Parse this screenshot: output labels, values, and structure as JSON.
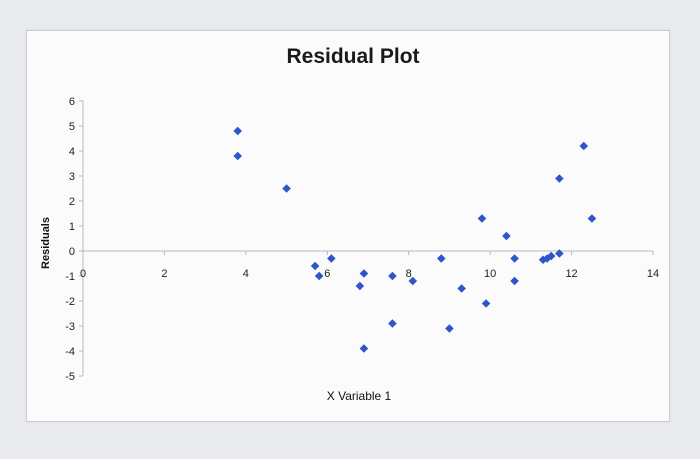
{
  "chart_data": {
    "type": "scatter",
    "title": "Residual Plot",
    "xlabel": "X Variable 1",
    "ylabel": "Residuals",
    "xlim": [
      0,
      14
    ],
    "ylim": [
      -5,
      6
    ],
    "x_ticks": [
      0,
      2,
      4,
      6,
      8,
      10,
      12,
      14
    ],
    "y_ticks": [
      -5,
      -4,
      -3,
      -2,
      -1,
      0,
      1,
      2,
      3,
      4,
      5,
      6
    ],
    "grid": false,
    "legend": "none",
    "marker": "diamond",
    "colors": {
      "marker": "#2f55c8",
      "axis": "#b8b8b8",
      "frame_bg": "#fbfbfc",
      "page_bg": "#e9eaee"
    },
    "series": [
      {
        "points": [
          {
            "x": 3.8,
            "y": 4.8
          },
          {
            "x": 3.8,
            "y": 3.8
          },
          {
            "x": 5.0,
            "y": 2.5
          },
          {
            "x": 5.7,
            "y": -0.6
          },
          {
            "x": 5.8,
            "y": -1.0
          },
          {
            "x": 6.1,
            "y": -0.3
          },
          {
            "x": 6.8,
            "y": -1.4
          },
          {
            "x": 6.9,
            "y": -0.9
          },
          {
            "x": 6.9,
            "y": -3.9
          },
          {
            "x": 7.6,
            "y": -1.0
          },
          {
            "x": 7.6,
            "y": -2.9
          },
          {
            "x": 8.1,
            "y": -1.2
          },
          {
            "x": 8.8,
            "y": -0.3
          },
          {
            "x": 9.0,
            "y": -3.1
          },
          {
            "x": 9.3,
            "y": -1.5
          },
          {
            "x": 9.8,
            "y": 1.3
          },
          {
            "x": 9.9,
            "y": -2.1
          },
          {
            "x": 10.4,
            "y": 0.6
          },
          {
            "x": 10.6,
            "y": -0.3
          },
          {
            "x": 10.6,
            "y": -1.2
          },
          {
            "x": 11.3,
            "y": -0.35
          },
          {
            "x": 11.4,
            "y": -0.3
          },
          {
            "x": 11.5,
            "y": -0.2
          },
          {
            "x": 11.7,
            "y": -0.1
          },
          {
            "x": 11.7,
            "y": 2.9
          },
          {
            "x": 12.3,
            "y": 4.2
          },
          {
            "x": 12.5,
            "y": 1.3
          }
        ]
      }
    ]
  }
}
